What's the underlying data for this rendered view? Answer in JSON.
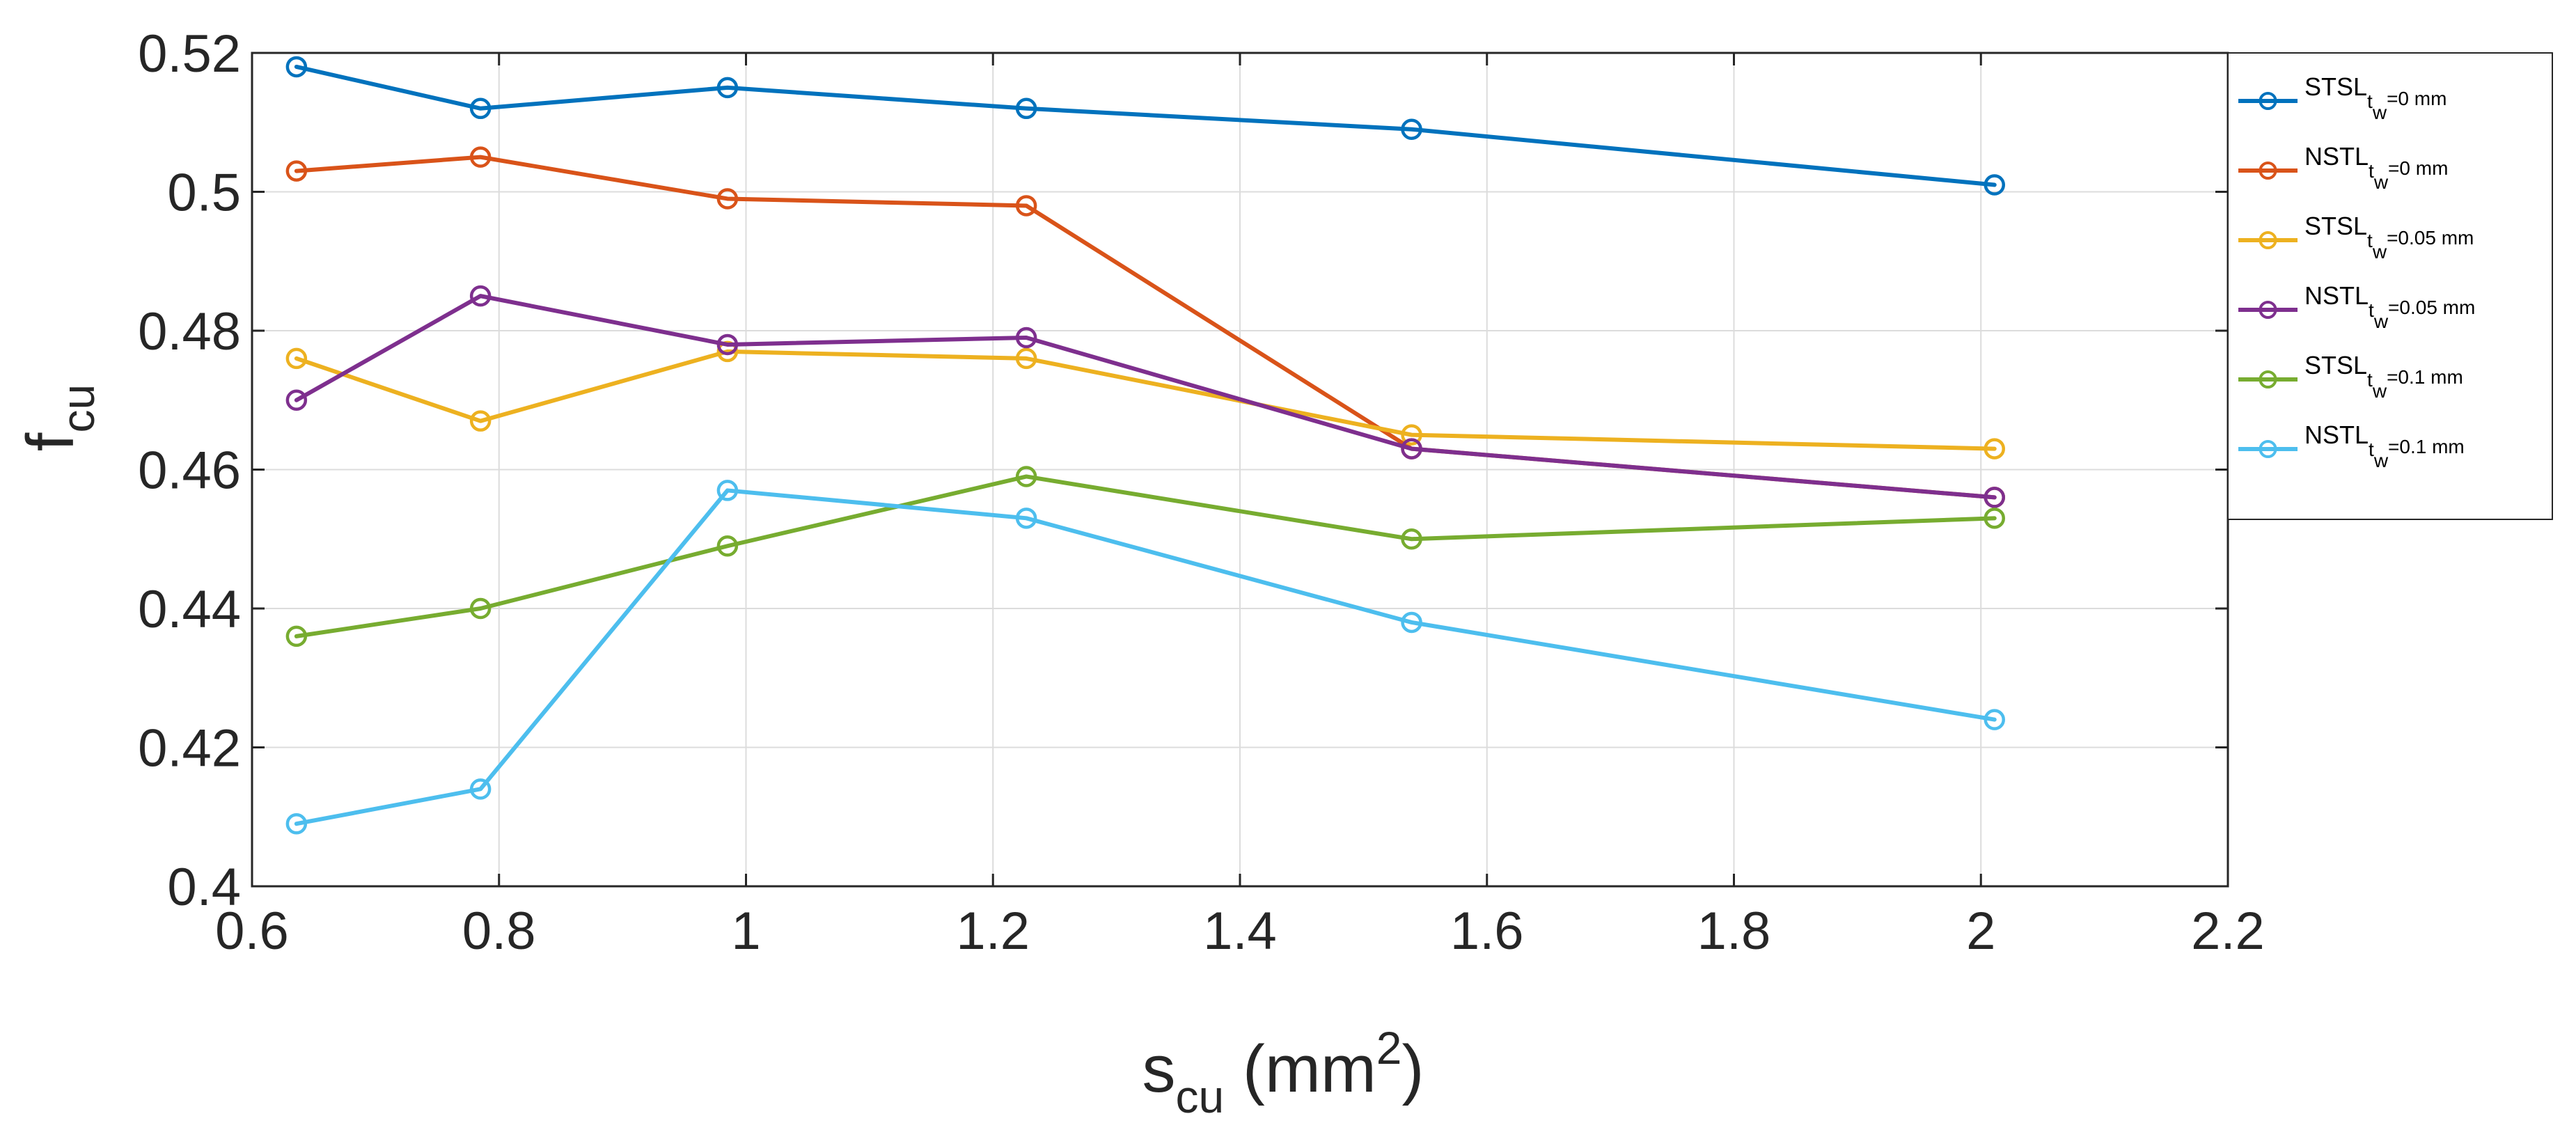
{
  "chart_data": {
    "type": "line",
    "title": "",
    "xlabel": {
      "main": "s",
      "sub": "cu",
      "unit_prefix": " (mm",
      "unit_sup": "2",
      "unit_suffix": ")"
    },
    "ylabel": {
      "main": "f",
      "sub": "cu"
    },
    "xlim": [
      0.6,
      2.2
    ],
    "ylim": [
      0.4,
      0.52
    ],
    "xticks": [
      0.6,
      0.8,
      1.0,
      1.2,
      1.4,
      1.6,
      1.8,
      2.0,
      2.2
    ],
    "xtick_labels": [
      "0.6",
      "0.8",
      "1",
      "1.2",
      "1.4",
      "1.6",
      "1.8",
      "2",
      "2.2"
    ],
    "yticks": [
      0.4,
      0.42,
      0.44,
      0.46,
      0.48,
      0.5,
      0.52
    ],
    "ytick_labels": [
      "0.4",
      "0.42",
      "0.44",
      "0.46",
      "0.48",
      "0.5",
      "0.52"
    ],
    "grid": true,
    "legend_position": "outside-top-right",
    "x": [
      0.636,
      0.785,
      0.985,
      1.227,
      1.539,
      2.011
    ],
    "series": [
      {
        "name_main": "STSL",
        "name_sub": "t",
        "name_subsub": "w",
        "name_suffix": "=0 mm",
        "color": "#0072BD",
        "values": [
          0.518,
          0.512,
          0.515,
          0.512,
          0.509,
          0.501
        ]
      },
      {
        "name_main": "NSTL",
        "name_sub": "t",
        "name_subsub": "w",
        "name_suffix": "=0 mm",
        "color": "#D95319",
        "values": [
          0.503,
          0.505,
          0.499,
          0.498,
          0.463,
          0.456
        ]
      },
      {
        "name_main": "STSL",
        "name_sub": "t",
        "name_subsub": "w",
        "name_suffix": "=0.05 mm",
        "color": "#EDB120",
        "values": [
          0.476,
          0.467,
          0.477,
          0.476,
          0.465,
          0.463
        ]
      },
      {
        "name_main": "NSTL",
        "name_sub": "t",
        "name_subsub": "w",
        "name_suffix": "=0.05 mm",
        "color": "#7E2F8E",
        "values": [
          0.47,
          0.485,
          0.478,
          0.479,
          0.463,
          0.456
        ]
      },
      {
        "name_main": "STSL",
        "name_sub": "t",
        "name_subsub": "w",
        "name_suffix": "=0.1 mm",
        "color": "#77AC30",
        "values": [
          0.436,
          0.44,
          0.449,
          0.459,
          0.45,
          0.453
        ]
      },
      {
        "name_main": "NSTL",
        "name_sub": "t",
        "name_subsub": "w",
        "name_suffix": "=0.1 mm",
        "color": "#4DBEEE",
        "values": [
          0.409,
          0.414,
          0.457,
          0.453,
          0.438,
          0.424
        ]
      }
    ]
  }
}
